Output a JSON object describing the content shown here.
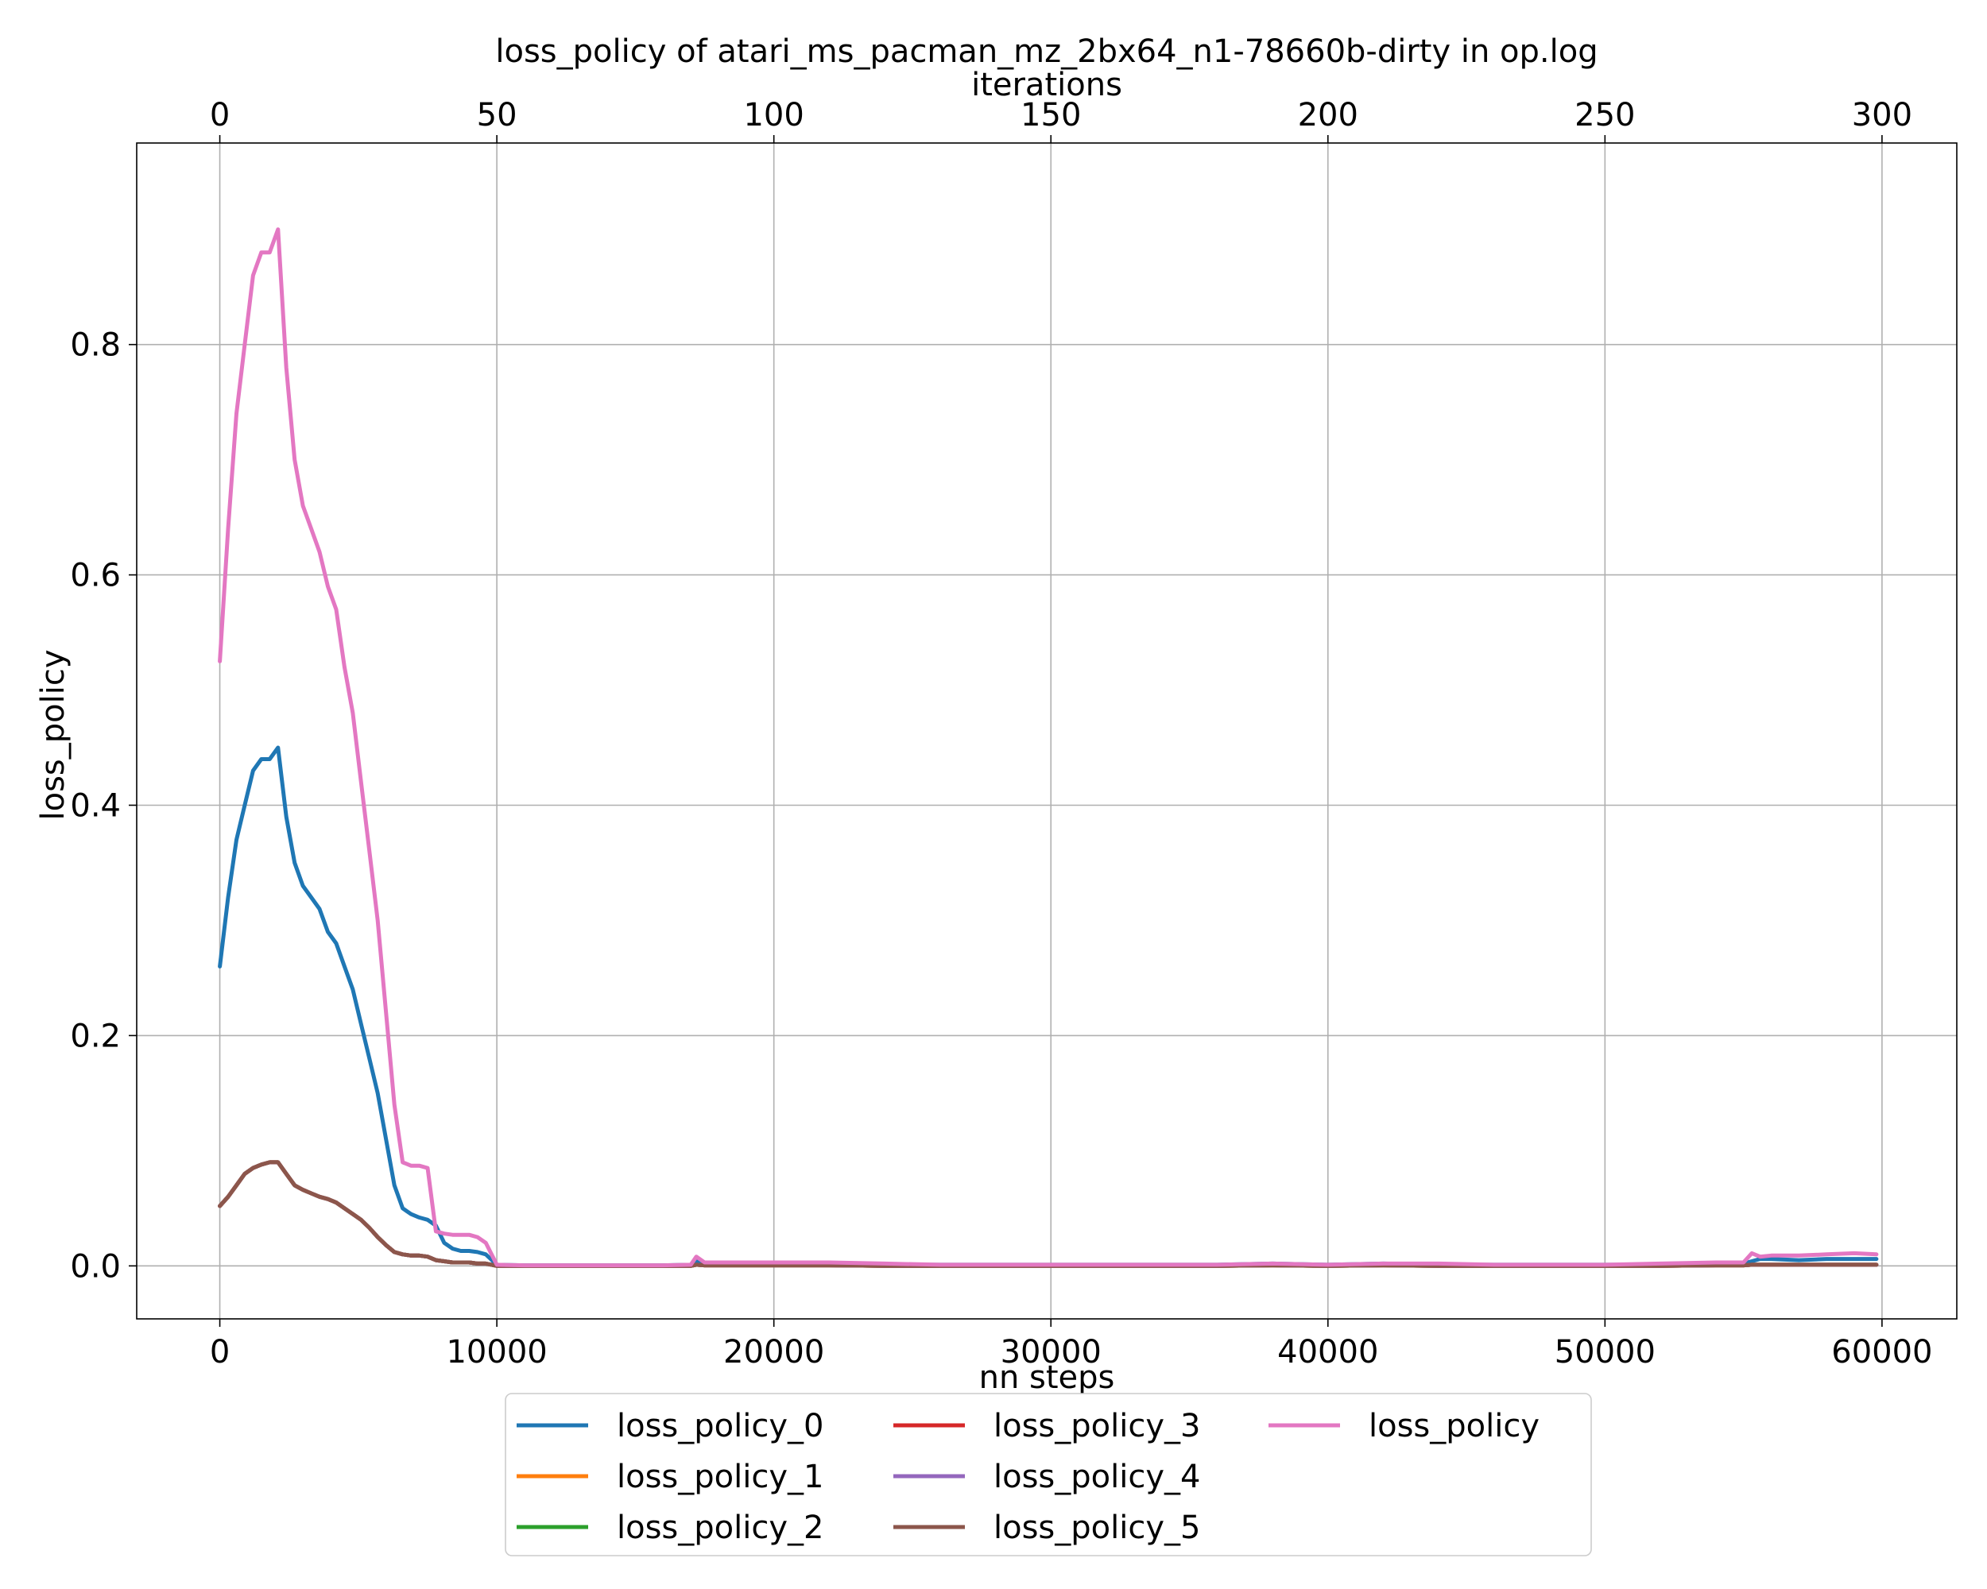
{
  "chart_data": {
    "type": "line",
    "title": "loss_policy of atari_ms_pacman_mz_2bx64_n1-78660b-dirty in op.log",
    "xlabel": "nn steps",
    "ylabel": "loss_policy",
    "top_xlabel": "iterations",
    "xlim": [
      -3000,
      62700
    ],
    "ylim": [
      -0.046,
      0.975
    ],
    "x_ticks": [
      0,
      10000,
      20000,
      30000,
      40000,
      50000,
      60000
    ],
    "x_tick_labels": [
      "0",
      "10000",
      "20000",
      "30000",
      "40000",
      "50000",
      "60000"
    ],
    "top_x_ticks": [
      0,
      50,
      100,
      150,
      200,
      250,
      300
    ],
    "top_x_tick_labels": [
      "0",
      "50",
      "100",
      "150",
      "200",
      "250",
      "300"
    ],
    "top_per_bottom": 200,
    "y_ticks": [
      0.0,
      0.2,
      0.4,
      0.6,
      0.8
    ],
    "y_tick_labels": [
      "0.0",
      "0.2",
      "0.4",
      "0.6",
      "0.8"
    ],
    "grid": true,
    "legend_placement": "bottom-center, below plot, 3 columns",
    "x": [
      0,
      300,
      600,
      900,
      1200,
      1500,
      1800,
      2100,
      2400,
      2700,
      3000,
      3300,
      3600,
      3900,
      4200,
      4500,
      4800,
      5100,
      5400,
      5700,
      6000,
      6300,
      6600,
      6900,
      7200,
      7500,
      7800,
      8100,
      8400,
      8700,
      9000,
      9300,
      9600,
      10000,
      11000,
      12000,
      14000,
      16000,
      17000,
      17200,
      17500,
      18000,
      20000,
      22000,
      24000,
      26000,
      28000,
      30000,
      32000,
      34000,
      36000,
      38000,
      40000,
      42000,
      44000,
      46000,
      48000,
      50000,
      52000,
      54000,
      55000,
      55300,
      55600,
      56000,
      57000,
      58000,
      59000,
      59800
    ],
    "series": [
      {
        "name": "loss_policy_0",
        "color": "#1f77b4",
        "values": [
          0.26,
          0.32,
          0.37,
          0.4,
          0.43,
          0.44,
          0.44,
          0.45,
          0.39,
          0.35,
          0.33,
          0.32,
          0.31,
          0.29,
          0.28,
          0.26,
          0.24,
          0.21,
          0.18,
          0.15,
          0.11,
          0.07,
          0.05,
          0.045,
          0.042,
          0.04,
          0.035,
          0.02,
          0.015,
          0.013,
          0.013,
          0.012,
          0.01,
          0.001,
          0.0005,
          0.0005,
          0.0005,
          0.0005,
          0.001,
          0.004,
          0.002,
          0.002,
          0.002,
          0.002,
          0.001,
          0.001,
          0.001,
          0.001,
          0.001,
          0.001,
          0.001,
          0.002,
          0.001,
          0.002,
          0.001,
          0.001,
          0.001,
          0.001,
          0.001,
          0.002,
          0.002,
          0.004,
          0.006,
          0.006,
          0.005,
          0.006,
          0.006,
          0.006
        ]
      },
      {
        "name": "loss_policy_1",
        "color": "#ff7f0e",
        "values": [
          0.052,
          0.06,
          0.07,
          0.08,
          0.085,
          0.088,
          0.09,
          0.09,
          0.08,
          0.07,
          0.066,
          0.063,
          0.06,
          0.058,
          0.055,
          0.05,
          0.045,
          0.04,
          0.033,
          0.025,
          0.018,
          0.012,
          0.01,
          0.009,
          0.009,
          0.008,
          0.005,
          0.004,
          0.003,
          0.003,
          0.003,
          0.002,
          0.002,
          0.0,
          0.0,
          0.0,
          0.0,
          0.0,
          0.0,
          0.001,
          0.0005,
          0.0005,
          0.0005,
          0.0005,
          0.0,
          0.0,
          0.0,
          0.0,
          0.0,
          0.0,
          0.0,
          0.0005,
          0.0,
          0.0005,
          0.0,
          0.0,
          0.0,
          0.0,
          0.0,
          0.0005,
          0.0005,
          0.001,
          0.001,
          0.001,
          0.001,
          0.001,
          0.001,
          0.001
        ]
      },
      {
        "name": "loss_policy_2",
        "color": "#2ca02c",
        "values": [
          0.052,
          0.06,
          0.07,
          0.08,
          0.085,
          0.088,
          0.09,
          0.09,
          0.08,
          0.07,
          0.066,
          0.063,
          0.06,
          0.058,
          0.055,
          0.05,
          0.045,
          0.04,
          0.033,
          0.025,
          0.018,
          0.012,
          0.01,
          0.009,
          0.009,
          0.008,
          0.005,
          0.004,
          0.003,
          0.003,
          0.003,
          0.002,
          0.002,
          0.0,
          0.0,
          0.0,
          0.0,
          0.0,
          0.0,
          0.001,
          0.0005,
          0.0005,
          0.0005,
          0.0005,
          0.0,
          0.0,
          0.0,
          0.0,
          0.0,
          0.0,
          0.0,
          0.0005,
          0.0,
          0.0005,
          0.0,
          0.0,
          0.0,
          0.0,
          0.0,
          0.0005,
          0.0005,
          0.001,
          0.001,
          0.001,
          0.001,
          0.001,
          0.001,
          0.001
        ]
      },
      {
        "name": "loss_policy_3",
        "color": "#d62728",
        "values": [
          0.052,
          0.06,
          0.07,
          0.08,
          0.085,
          0.088,
          0.09,
          0.09,
          0.08,
          0.07,
          0.066,
          0.063,
          0.06,
          0.058,
          0.055,
          0.05,
          0.045,
          0.04,
          0.033,
          0.025,
          0.018,
          0.012,
          0.01,
          0.009,
          0.009,
          0.008,
          0.005,
          0.004,
          0.003,
          0.003,
          0.003,
          0.002,
          0.002,
          0.0,
          0.0,
          0.0,
          0.0,
          0.0,
          0.0,
          0.001,
          0.0005,
          0.0005,
          0.0005,
          0.0005,
          0.0,
          0.0,
          0.0,
          0.0,
          0.0,
          0.0,
          0.0,
          0.0005,
          0.0,
          0.0005,
          0.0,
          0.0,
          0.0,
          0.0,
          0.0,
          0.0005,
          0.0005,
          0.001,
          0.001,
          0.001,
          0.001,
          0.001,
          0.001,
          0.001
        ]
      },
      {
        "name": "loss_policy_4",
        "color": "#9467bd",
        "values": [
          0.052,
          0.06,
          0.07,
          0.08,
          0.085,
          0.088,
          0.09,
          0.09,
          0.08,
          0.07,
          0.066,
          0.063,
          0.06,
          0.058,
          0.055,
          0.05,
          0.045,
          0.04,
          0.033,
          0.025,
          0.018,
          0.012,
          0.01,
          0.009,
          0.009,
          0.008,
          0.005,
          0.004,
          0.003,
          0.003,
          0.003,
          0.002,
          0.002,
          0.0,
          0.0,
          0.0,
          0.0,
          0.0,
          0.0,
          0.001,
          0.0005,
          0.0005,
          0.0005,
          0.0005,
          0.0,
          0.0,
          0.0,
          0.0,
          0.0,
          0.0,
          0.0,
          0.0005,
          0.0,
          0.0005,
          0.0,
          0.0,
          0.0,
          0.0,
          0.0,
          0.0005,
          0.0005,
          0.001,
          0.001,
          0.001,
          0.001,
          0.001,
          0.001,
          0.001
        ]
      },
      {
        "name": "loss_policy_5",
        "color": "#8c564b",
        "values": [
          0.052,
          0.06,
          0.07,
          0.08,
          0.085,
          0.088,
          0.09,
          0.09,
          0.08,
          0.07,
          0.066,
          0.063,
          0.06,
          0.058,
          0.055,
          0.05,
          0.045,
          0.04,
          0.033,
          0.025,
          0.018,
          0.012,
          0.01,
          0.009,
          0.009,
          0.008,
          0.005,
          0.004,
          0.003,
          0.003,
          0.003,
          0.002,
          0.002,
          0.0,
          0.0,
          0.0,
          0.0,
          0.0,
          0.0,
          0.001,
          0.0005,
          0.0005,
          0.0005,
          0.0005,
          0.0,
          0.0,
          0.0,
          0.0,
          0.0,
          0.0,
          0.0,
          0.0005,
          0.0,
          0.0005,
          0.0,
          0.0,
          0.0,
          0.0,
          0.0,
          0.0005,
          0.0005,
          0.001,
          0.001,
          0.001,
          0.001,
          0.001,
          0.001,
          0.001
        ]
      },
      {
        "name": "loss_policy",
        "color": "#e377c2",
        "values": [
          0.525,
          0.64,
          0.74,
          0.8,
          0.86,
          0.88,
          0.88,
          0.9,
          0.78,
          0.7,
          0.66,
          0.64,
          0.62,
          0.59,
          0.57,
          0.52,
          0.48,
          0.42,
          0.36,
          0.3,
          0.22,
          0.14,
          0.09,
          0.087,
          0.087,
          0.085,
          0.03,
          0.028,
          0.027,
          0.027,
          0.027,
          0.025,
          0.02,
          0.001,
          0.0005,
          0.0005,
          0.0005,
          0.0005,
          0.001,
          0.008,
          0.003,
          0.003,
          0.003,
          0.003,
          0.002,
          0.001,
          0.001,
          0.001,
          0.001,
          0.001,
          0.001,
          0.002,
          0.001,
          0.002,
          0.002,
          0.001,
          0.001,
          0.001,
          0.002,
          0.003,
          0.003,
          0.011,
          0.008,
          0.009,
          0.009,
          0.01,
          0.011,
          0.01
        ]
      }
    ]
  }
}
